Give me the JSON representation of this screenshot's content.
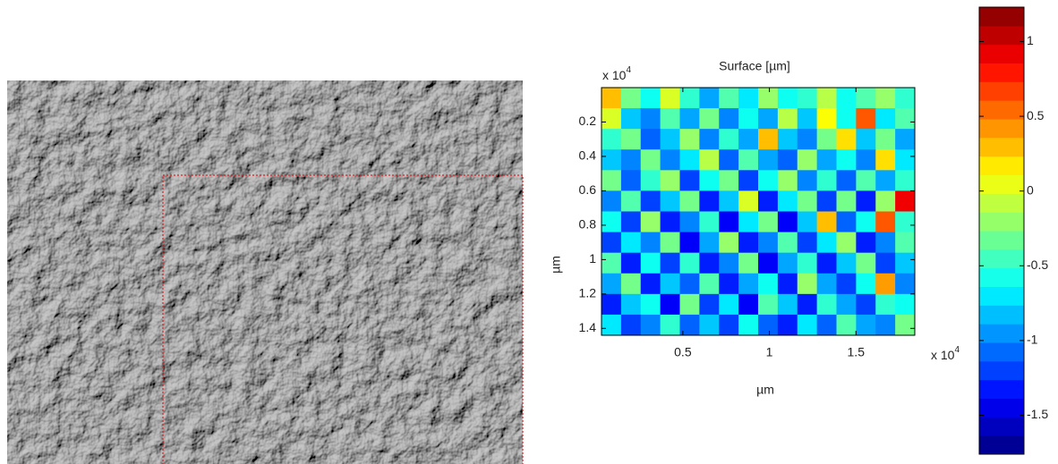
{
  "chart_data": {
    "type": "heatmap",
    "title": "Surface [µm]",
    "x_label": "µm",
    "y_label": "µm",
    "x_multiplier": "x 10",
    "x_multiplier_exp": "4",
    "y_multiplier": "x 10",
    "y_multiplier_exp": "4",
    "xlim": [
      0.03,
      1.84
    ],
    "xticks": [
      0.5,
      1,
      1.5
    ],
    "ylim": [
      0,
      1.44
    ],
    "yticks": [
      0.2,
      0.4,
      0.6,
      0.8,
      1,
      1.2,
      1.4
    ],
    "y_inverted": true,
    "colormap": "jet",
    "clim": [
      -1.76,
      1.23
    ],
    "cticks": [
      1,
      0.5,
      0,
      -0.5,
      -1,
      -1.5
    ],
    "z": [
      [
        0.3,
        -0.3,
        -0.6,
        0.0,
        -0.5,
        -0.9,
        -0.4,
        -0.7,
        -0.2,
        -0.6,
        -0.5,
        -0.1,
        -0.6,
        -0.4,
        -0.2,
        -0.5
      ],
      [
        0.0,
        -0.8,
        -1.0,
        -0.4,
        -0.9,
        -0.3,
        -1.0,
        -0.6,
        -0.9,
        -0.1,
        -0.8,
        0.1,
        -0.6,
        0.6,
        -0.7,
        -0.4
      ],
      [
        -0.5,
        -0.3,
        -1.1,
        -0.8,
        -0.2,
        -1.0,
        -0.5,
        -0.9,
        0.3,
        -0.8,
        -1.0,
        -0.3,
        0.2,
        -0.8,
        -0.3,
        -0.9
      ],
      [
        -0.8,
        -1.0,
        -0.3,
        -1.0,
        -0.7,
        -0.1,
        -1.1,
        -0.4,
        -0.9,
        -1.1,
        -0.2,
        -0.9,
        -0.6,
        -1.0,
        0.2,
        -0.7
      ],
      [
        -0.3,
        -1.1,
        -0.5,
        -0.2,
        -1.2,
        -0.6,
        -0.3,
        -1.2,
        -0.6,
        -0.2,
        -1.0,
        -0.5,
        -1.1,
        -0.4,
        -0.9,
        -0.5
      ],
      [
        -1.0,
        -0.4,
        -1.2,
        -0.8,
        -0.3,
        -1.3,
        -0.8,
        0.0,
        -1.3,
        -0.7,
        -0.3,
        -1.2,
        -0.3,
        -1.3,
        -0.2,
        0.9
      ],
      [
        -0.6,
        -1.2,
        -0.2,
        -1.3,
        -1.0,
        -0.5,
        -1.4,
        -0.7,
        -0.3,
        -1.4,
        -0.8,
        0.3,
        -1.1,
        -0.6,
        0.6,
        -0.5
      ],
      [
        -1.2,
        -0.7,
        -1.0,
        -0.3,
        -1.4,
        -0.9,
        -0.2,
        -1.3,
        -1.0,
        -0.4,
        -1.2,
        -0.7,
        -0.2,
        -1.3,
        -1.0,
        -0.4
      ],
      [
        -0.4,
        -1.3,
        -0.6,
        -1.2,
        -0.5,
        -1.3,
        -1.0,
        -0.3,
        -1.4,
        -0.9,
        -0.5,
        -1.3,
        -0.8,
        -0.3,
        -1.2,
        -0.8
      ],
      [
        -0.9,
        -0.3,
        -1.3,
        -0.8,
        -1.1,
        -0.4,
        -1.3,
        -0.9,
        -0.6,
        -1.3,
        -0.2,
        -0.9,
        -1.2,
        -0.6,
        0.4,
        -1.0
      ],
      [
        -1.3,
        -0.8,
        -0.6,
        -1.4,
        -0.3,
        -1.2,
        -0.7,
        -1.4,
        -0.4,
        -0.8,
        -1.3,
        -0.5,
        -0.9,
        -1.2,
        -0.5,
        -0.6
      ],
      [
        -0.7,
        -1.2,
        -1.0,
        -0.5,
        -1.1,
        -0.8,
        -1.2,
        -0.6,
        -1.1,
        -1.3,
        -0.7,
        -1.1,
        -0.4,
        -0.9,
        -1.0,
        -0.3
      ]
    ]
  }
}
